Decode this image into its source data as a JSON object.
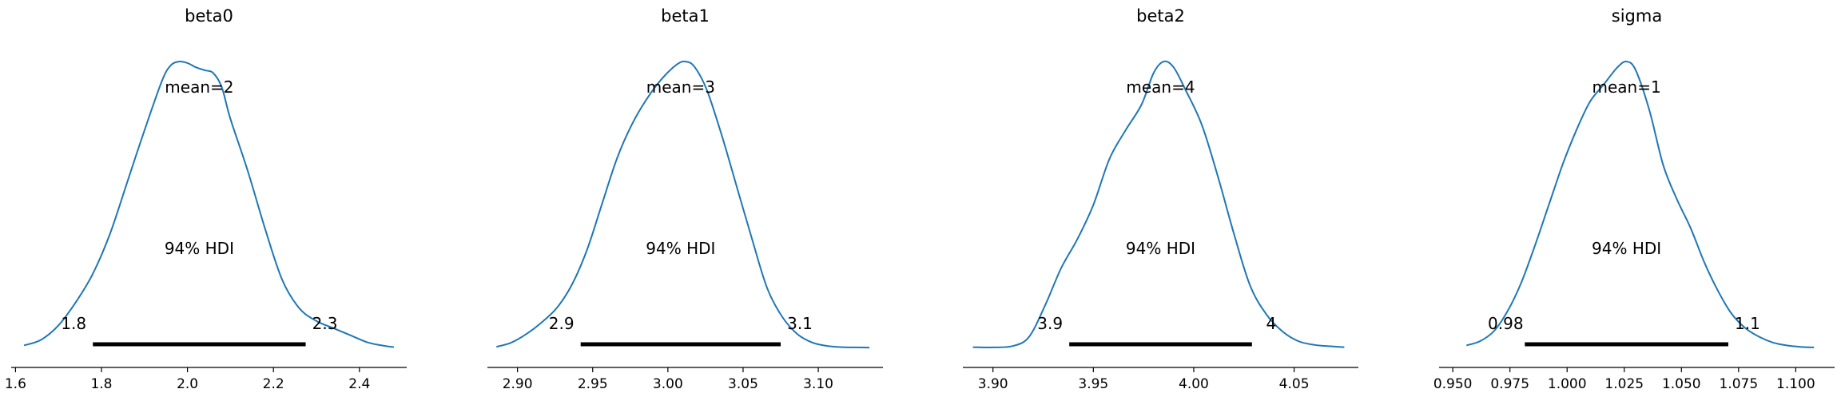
{
  "chart_data": [
    {
      "type": "area",
      "title": "beta0",
      "mean_label": "mean=2",
      "hdi_label": "94% HDI",
      "hdi": [
        1.78,
        2.275
      ],
      "hdi_labels": [
        "1.8",
        "2.3"
      ],
      "xlim": [
        1.59,
        2.51
      ],
      "xticks": [
        1.6,
        1.8,
        2.0,
        2.2,
        2.4
      ],
      "xtick_labels": [
        "1.6",
        "1.8",
        "2.0",
        "2.2",
        "2.4"
      ],
      "ylim": [
        0,
        1.07
      ],
      "density": {
        "x": [
          1.62,
          1.66,
          1.7,
          1.74,
          1.78,
          1.82,
          1.86,
          1.9,
          1.94,
          1.96,
          1.98,
          2.0,
          2.02,
          2.04,
          2.06,
          2.08,
          2.1,
          2.14,
          2.18,
          2.22,
          2.26,
          2.3,
          2.34,
          2.38,
          2.42,
          2.46,
          2.48
        ],
        "y": [
          0.01,
          0.03,
          0.08,
          0.16,
          0.26,
          0.4,
          0.58,
          0.76,
          0.93,
          0.985,
          1.0,
          0.995,
          0.98,
          0.97,
          0.96,
          0.91,
          0.8,
          0.62,
          0.42,
          0.24,
          0.14,
          0.095,
          0.07,
          0.045,
          0.02,
          0.008,
          0.004
        ]
      }
    },
    {
      "type": "area",
      "title": "beta1",
      "mean_label": "mean=3",
      "hdi_label": "94% HDI",
      "hdi": [
        2.942,
        3.075
      ],
      "hdi_labels": [
        "2.9",
        "3.1"
      ],
      "xlim": [
        2.88,
        3.143
      ],
      "xticks": [
        2.9,
        2.95,
        3.0,
        3.05,
        3.1
      ],
      "xtick_labels": [
        "2.90",
        "2.95",
        "3.00",
        "3.05",
        "3.10"
      ],
      "ylim": [
        0,
        1.07
      ],
      "density": {
        "x": [
          2.886,
          2.896,
          2.906,
          2.916,
          2.926,
          2.936,
          2.946,
          2.956,
          2.966,
          2.976,
          2.986,
          2.996,
          3.006,
          3.012,
          3.018,
          3.026,
          3.036,
          3.046,
          3.056,
          3.066,
          3.076,
          3.086,
          3.096,
          3.106,
          3.116,
          3.126,
          3.134
        ],
        "y": [
          0.005,
          0.02,
          0.05,
          0.09,
          0.14,
          0.22,
          0.34,
          0.5,
          0.66,
          0.78,
          0.87,
          0.94,
          0.99,
          1.0,
          0.98,
          0.9,
          0.74,
          0.56,
          0.38,
          0.21,
          0.11,
          0.05,
          0.02,
          0.008,
          0.004,
          0.003,
          0.002
        ]
      }
    },
    {
      "type": "area",
      "title": "beta2",
      "mean_label": "mean=4",
      "hdi_label": "94% HDI",
      "hdi": [
        3.938,
        4.029
      ],
      "hdi_labels": [
        "3.9",
        "4"
      ],
      "xlim": [
        3.885,
        4.082
      ],
      "xticks": [
        3.9,
        3.95,
        4.0,
        4.05
      ],
      "xtick_labels": [
        "3.90",
        "3.95",
        "4.00",
        "4.05"
      ],
      "ylim": [
        0,
        1.07
      ],
      "density": {
        "x": [
          3.89,
          3.9,
          3.91,
          3.918,
          3.926,
          3.934,
          3.942,
          3.95,
          3.958,
          3.966,
          3.974,
          3.98,
          3.985,
          3.99,
          3.996,
          4.004,
          4.012,
          4.02,
          4.028,
          4.036,
          4.044,
          4.052,
          4.06,
          4.068,
          4.075
        ],
        "y": [
          0.004,
          0.003,
          0.008,
          0.04,
          0.15,
          0.28,
          0.38,
          0.5,
          0.66,
          0.76,
          0.85,
          0.96,
          1.0,
          0.98,
          0.9,
          0.78,
          0.6,
          0.4,
          0.22,
          0.12,
          0.06,
          0.025,
          0.012,
          0.007,
          0.004
        ]
      }
    },
    {
      "type": "area",
      "title": "sigma",
      "mean_label": "mean=1",
      "hdi_label": "94% HDI",
      "hdi": [
        0.9815,
        1.0705
      ],
      "hdi_labels": [
        "0.98",
        "1.1"
      ],
      "xlim": [
        0.944,
        1.117
      ],
      "xticks": [
        0.95,
        0.975,
        1.0,
        1.025,
        1.05,
        1.075,
        1.1
      ],
      "xtick_labels": [
        "0.950",
        "0.975",
        "1.000",
        "1.025",
        "1.050",
        "1.075",
        "1.100"
      ],
      "ylim": [
        0,
        1.07
      ],
      "density": {
        "x": [
          0.956,
          0.962,
          0.968,
          0.974,
          0.98,
          0.986,
          0.992,
          0.998,
          1.004,
          1.01,
          1.016,
          1.022,
          1.026,
          1.03,
          1.036,
          1.042,
          1.048,
          1.054,
          1.06,
          1.066,
          1.072,
          1.078,
          1.084,
          1.09,
          1.096,
          1.102,
          1.108
        ],
        "y": [
          0.01,
          0.025,
          0.06,
          0.13,
          0.23,
          0.36,
          0.5,
          0.64,
          0.76,
          0.86,
          0.92,
          0.98,
          1.0,
          0.97,
          0.83,
          0.64,
          0.52,
          0.42,
          0.3,
          0.2,
          0.12,
          0.07,
          0.04,
          0.02,
          0.01,
          0.005,
          0.003
        ]
      }
    }
  ],
  "colors": {
    "line": "#1f77b4",
    "hdi_bar": "#000000",
    "axis": "#000000"
  }
}
